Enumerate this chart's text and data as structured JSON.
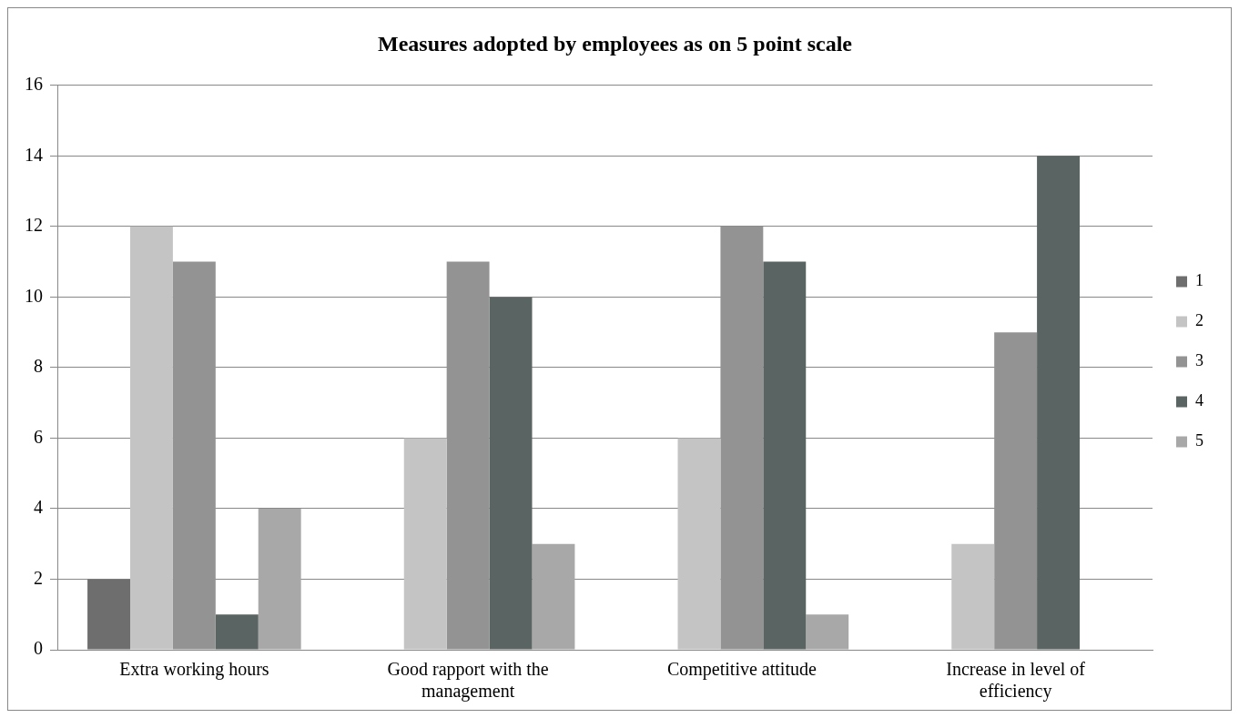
{
  "chart_data": {
    "type": "bar",
    "title": "Measures adopted by employees as on 5 point scale",
    "categories": [
      "Extra working hours",
      "Good rapport with the management",
      "Competitive attitude",
      "Increase in level of efficiency"
    ],
    "series": [
      {
        "name": "1",
        "color": "#6e6e6e",
        "values": [
          2,
          0,
          0,
          0
        ]
      },
      {
        "name": "2",
        "color": "#c4c4c4",
        "values": [
          12,
          6,
          6,
          3
        ]
      },
      {
        "name": "3",
        "color": "#939393",
        "values": [
          11,
          11,
          12,
          9
        ]
      },
      {
        "name": "4",
        "color": "#5a6462",
        "values": [
          1,
          10,
          11,
          14
        ]
      },
      {
        "name": "5",
        "color": "#a8a8a8",
        "values": [
          4,
          3,
          1,
          0
        ]
      }
    ],
    "ylim": [
      0,
      16
    ],
    "yticks": [
      0,
      2,
      4,
      6,
      8,
      10,
      12,
      14,
      16
    ],
    "grid": "y",
    "legend": "right"
  }
}
